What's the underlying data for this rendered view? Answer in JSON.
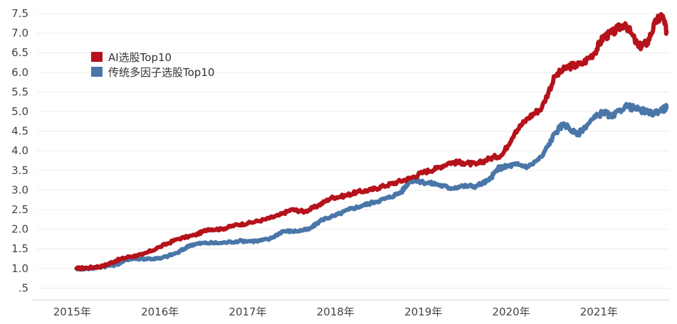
{
  "chart_data": {
    "type": "line",
    "title": "",
    "xlabel": "",
    "ylabel": "",
    "x_ticks": [
      "2015年",
      "2016年",
      "2017年",
      "2018年",
      "2019年",
      "2020年",
      "2021年"
    ],
    "y_ticks": [
      ".5",
      "1.0",
      "1.5",
      "2.0",
      "2.5",
      "3.0",
      "3.5",
      "4.0",
      "4.5",
      "5.0",
      "5.5",
      "6.0",
      "6.5",
      "7.0",
      "7.5"
    ],
    "ylim": [
      0.2,
      7.7
    ],
    "xlim": [
      2014.6,
      2021.8
    ],
    "grid": "horizontal",
    "legend_position": "top-left",
    "series": [
      {
        "name": "AI选股Top10",
        "color": "#b5121b",
        "points": [
          [
            2015.05,
            1.0
          ],
          [
            2015.2,
            1.02
          ],
          [
            2015.35,
            1.06
          ],
          [
            2015.5,
            1.2
          ],
          [
            2015.65,
            1.3
          ],
          [
            2015.8,
            1.35
          ],
          [
            2016.0,
            1.55
          ],
          [
            2016.2,
            1.75
          ],
          [
            2016.4,
            1.85
          ],
          [
            2016.55,
            2.0
          ],
          [
            2016.7,
            2.0
          ],
          [
            2016.85,
            2.1
          ],
          [
            2017.0,
            2.15
          ],
          [
            2017.2,
            2.25
          ],
          [
            2017.35,
            2.35
          ],
          [
            2017.5,
            2.5
          ],
          [
            2017.65,
            2.45
          ],
          [
            2017.8,
            2.6
          ],
          [
            2017.95,
            2.8
          ],
          [
            2018.1,
            2.85
          ],
          [
            2018.25,
            2.95
          ],
          [
            2018.4,
            3.0
          ],
          [
            2018.55,
            3.1
          ],
          [
            2018.7,
            3.2
          ],
          [
            2018.85,
            3.3
          ],
          [
            2019.0,
            3.45
          ],
          [
            2019.15,
            3.55
          ],
          [
            2019.3,
            3.7
          ],
          [
            2019.45,
            3.7
          ],
          [
            2019.6,
            3.65
          ],
          [
            2019.75,
            3.8
          ],
          [
            2019.9,
            3.9
          ],
          [
            2020.05,
            4.5
          ],
          [
            2020.2,
            4.85
          ],
          [
            2020.35,
            5.1
          ],
          [
            2020.5,
            5.9
          ],
          [
            2020.65,
            6.15
          ],
          [
            2020.8,
            6.2
          ],
          [
            2020.95,
            6.5
          ],
          [
            2021.05,
            6.9
          ],
          [
            2021.15,
            7.0
          ],
          [
            2021.3,
            7.25
          ],
          [
            2021.45,
            6.65
          ],
          [
            2021.55,
            6.75
          ],
          [
            2021.65,
            7.3
          ],
          [
            2021.72,
            7.45
          ],
          [
            2021.77,
            7.05
          ]
        ]
      },
      {
        "name": "传统多因子选股Top10",
        "color": "#4a76a8",
        "points": [
          [
            2015.05,
            1.0
          ],
          [
            2015.2,
            1.0
          ],
          [
            2015.35,
            1.05
          ],
          [
            2015.5,
            1.1
          ],
          [
            2015.65,
            1.25
          ],
          [
            2015.8,
            1.25
          ],
          [
            2016.0,
            1.25
          ],
          [
            2016.2,
            1.4
          ],
          [
            2016.35,
            1.6
          ],
          [
            2016.5,
            1.65
          ],
          [
            2016.7,
            1.65
          ],
          [
            2016.9,
            1.7
          ],
          [
            2017.1,
            1.7
          ],
          [
            2017.25,
            1.75
          ],
          [
            2017.4,
            1.95
          ],
          [
            2017.55,
            1.95
          ],
          [
            2017.7,
            2.0
          ],
          [
            2017.85,
            2.25
          ],
          [
            2018.0,
            2.35
          ],
          [
            2018.15,
            2.5
          ],
          [
            2018.3,
            2.6
          ],
          [
            2018.45,
            2.7
          ],
          [
            2018.6,
            2.8
          ],
          [
            2018.75,
            2.95
          ],
          [
            2018.85,
            3.25
          ],
          [
            2019.0,
            3.2
          ],
          [
            2019.15,
            3.15
          ],
          [
            2019.3,
            3.05
          ],
          [
            2019.45,
            3.1
          ],
          [
            2019.6,
            3.1
          ],
          [
            2019.75,
            3.25
          ],
          [
            2019.85,
            3.55
          ],
          [
            2019.95,
            3.6
          ],
          [
            2020.05,
            3.65
          ],
          [
            2020.2,
            3.6
          ],
          [
            2020.35,
            3.85
          ],
          [
            2020.5,
            4.45
          ],
          [
            2020.6,
            4.7
          ],
          [
            2020.75,
            4.4
          ],
          [
            2020.9,
            4.75
          ],
          [
            2021.05,
            5.0
          ],
          [
            2021.15,
            4.85
          ],
          [
            2021.3,
            5.15
          ],
          [
            2021.45,
            5.05
          ],
          [
            2021.6,
            4.95
          ],
          [
            2021.72,
            5.05
          ],
          [
            2021.77,
            5.1
          ]
        ]
      }
    ]
  }
}
